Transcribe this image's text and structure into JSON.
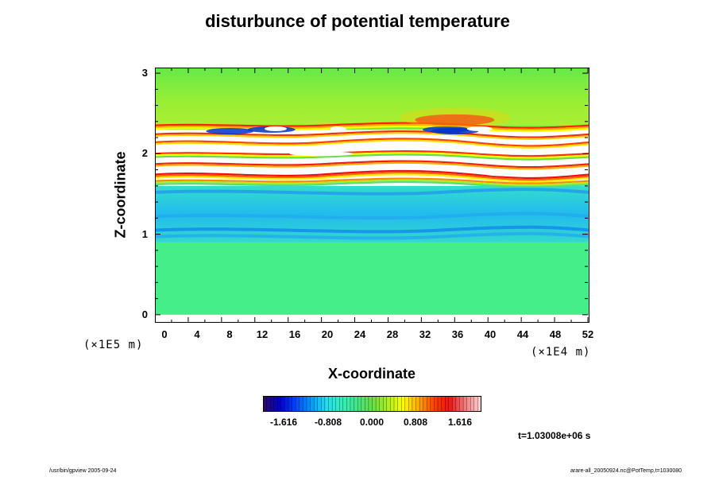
{
  "chart_data": {
    "type": "heatmap",
    "title": "disturbunce of potential temperature",
    "xlabel": "X-coordinate",
    "ylabel": "Z-coordinate",
    "x_units": "(×1E4 m)",
    "y_units": "(×1E5 m)",
    "xlim": [
      0,
      52
    ],
    "ylim": [
      0,
      3
    ],
    "x_ticks": [
      "0",
      "4",
      "8",
      "12",
      "16",
      "20",
      "24",
      "28",
      "32",
      "36",
      "40",
      "44",
      "48",
      "52"
    ],
    "y_ticks": [
      "0",
      "1",
      "2",
      "3"
    ],
    "colorbar": {
      "ticks": [
        "-1.616",
        "-0.808",
        "0.000",
        "0.808",
        "1.616"
      ],
      "colors": [
        "#2a0a6a",
        "#0000cc",
        "#0044ff",
        "#0099ff",
        "#22ddee",
        "#33eebb",
        "#44e588",
        "#66dd44",
        "#aaee22",
        "#ffff00",
        "#ffaa00",
        "#ff4400",
        "#ee1111",
        "#ee7777",
        "#ffcccc"
      ]
    },
    "annotation": "t=1.03008e+06 s",
    "layers": [
      {
        "z_range": [
          0.0,
          0.9
        ],
        "approx_value": 0.0,
        "color": "#44ee88"
      },
      {
        "z_range": [
          0.9,
          1.6
        ],
        "approx_value": -0.6,
        "color": "#22ccee"
      },
      {
        "z_range": [
          1.6,
          2.3
        ],
        "approx_value": "mixed, exceeds colorbar range",
        "color": "#ffffff"
      },
      {
        "z_range": [
          2.3,
          3.05
        ],
        "approx_value": 0.3,
        "color": "#77e844"
      }
    ]
  },
  "footer": {
    "left": "/usr/bin/gpview 2005-09-24",
    "right": "arare-all_20050924.nc@PotTemp,t=1030080"
  }
}
